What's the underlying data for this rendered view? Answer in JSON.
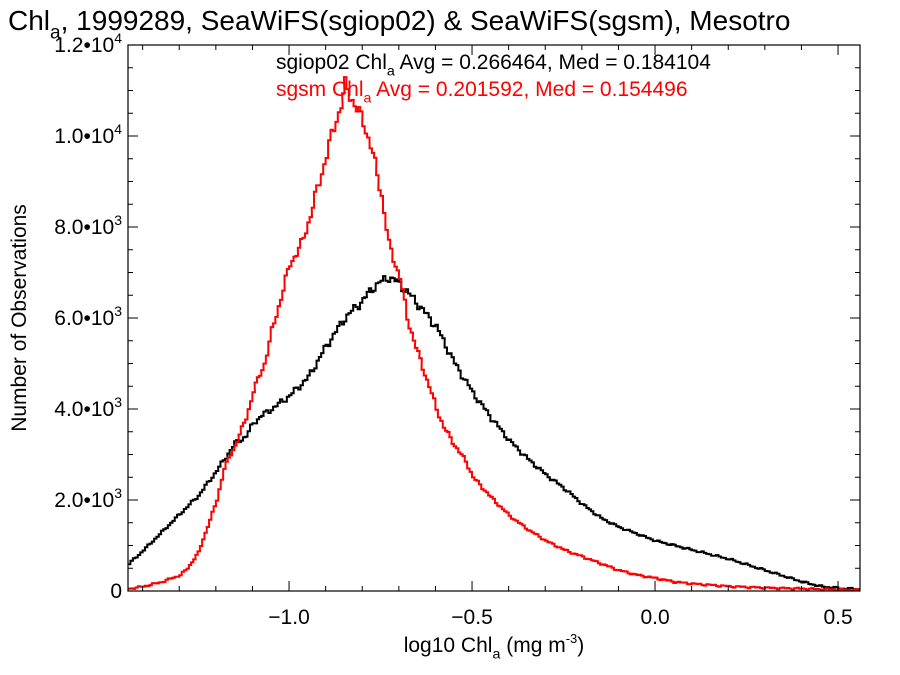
{
  "chart_data": {
    "type": "line",
    "style": "step histogram",
    "title": {
      "parts": [
        {
          "t": "Chl"
        },
        {
          "t": "a",
          "sub": true
        },
        {
          "t": ", 1999289, SeaWiFS(sgiop02) & SeaWiFS(sgsm), Mesotro"
        }
      ]
    },
    "xlabel": {
      "parts": [
        {
          "t": "log10 Chl"
        },
        {
          "t": "a",
          "sub": true
        },
        {
          "t": " (mg m"
        },
        {
          "t": "-3",
          "sup": true
        },
        {
          "t": ")"
        }
      ]
    },
    "ylabel": "Number of Observations",
    "xlim": [
      -1.44,
      0.56
    ],
    "ylim": [
      0,
      12000
    ],
    "x_ticks": [
      {
        "v": -1.0,
        "label": "−1.0"
      },
      {
        "v": -0.5,
        "label": "−0.5"
      },
      {
        "v": 0.0,
        "label": "0.0"
      },
      {
        "v": 0.5,
        "label": "0.5"
      }
    ],
    "y_ticks": [
      {
        "v": 0,
        "mant": "0"
      },
      {
        "v": 2000,
        "mant": "2.0•10",
        "exp": "3"
      },
      {
        "v": 4000,
        "mant": "4.0•10",
        "exp": "3"
      },
      {
        "v": 6000,
        "mant": "6.0•10",
        "exp": "3"
      },
      {
        "v": 8000,
        "mant": "8.0•10",
        "exp": "3"
      },
      {
        "v": 10000,
        "mant": "1.0•10",
        "exp": "4"
      },
      {
        "v": 12000,
        "mant": "1.2•10",
        "exp": "4"
      }
    ],
    "grid": false,
    "annotations": [
      {
        "color": "#000000",
        "parts": [
          {
            "t": "sgiop02 Chl"
          },
          {
            "t": "a",
            "sub": true
          },
          {
            "t": " Avg = 0.266464, Med = 0.184104"
          }
        ]
      },
      {
        "color": "#ff0000",
        "parts": [
          {
            "t": "sgsm Chl"
          },
          {
            "t": "a",
            "sub": true
          },
          {
            "t": " Avg = 0.201592, Med = 0.154496"
          }
        ]
      }
    ],
    "series": [
      {
        "color": "#000000",
        "x": [
          -1.44,
          -1.4,
          -1.35,
          -1.3,
          -1.25,
          -1.2,
          -1.15,
          -1.12,
          -1.1,
          -1.07,
          -1.05,
          -1.0,
          -0.95,
          -0.9,
          -0.85,
          -0.8,
          -0.77,
          -0.75,
          -0.73,
          -0.7,
          -0.65,
          -0.6,
          -0.55,
          -0.5,
          -0.45,
          -0.4,
          -0.35,
          -0.3,
          -0.25,
          -0.2,
          -0.15,
          -0.1,
          -0.05,
          0.0,
          0.05,
          0.1,
          0.2,
          0.3,
          0.4,
          0.45,
          0.5,
          0.56
        ],
        "y": [
          600,
          900,
          1300,
          1700,
          2100,
          2650,
          3250,
          3400,
          3700,
          3900,
          4000,
          4300,
          4700,
          5400,
          6000,
          6400,
          6700,
          6800,
          6900,
          6750,
          6300,
          5800,
          5000,
          4350,
          3800,
          3300,
          2900,
          2550,
          2250,
          1900,
          1600,
          1400,
          1250,
          1100,
          1000,
          900,
          700,
          450,
          200,
          100,
          60,
          40
        ]
      },
      {
        "color": "#ff0000",
        "x": [
          -1.44,
          -1.4,
          -1.35,
          -1.3,
          -1.28,
          -1.25,
          -1.2,
          -1.18,
          -1.15,
          -1.12,
          -1.1,
          -1.07,
          -1.05,
          -1.0,
          -0.97,
          -0.95,
          -0.92,
          -0.9,
          -0.88,
          -0.86,
          -0.85,
          -0.83,
          -0.8,
          -0.78,
          -0.75,
          -0.73,
          -0.7,
          -0.68,
          -0.65,
          -0.62,
          -0.6,
          -0.58,
          -0.55,
          -0.52,
          -0.5,
          -0.45,
          -0.4,
          -0.35,
          -0.3,
          -0.25,
          -0.2,
          -0.15,
          -0.1,
          -0.05,
          0.0,
          0.05,
          0.1,
          0.2,
          0.3,
          0.4,
          0.5,
          0.56
        ],
        "y": [
          50,
          100,
          200,
          350,
          500,
          850,
          2000,
          2700,
          3200,
          3800,
          4400,
          5000,
          5700,
          7200,
          7600,
          8100,
          9000,
          9600,
          10200,
          10700,
          11100,
          10800,
          10300,
          9800,
          8700,
          7600,
          6900,
          6000,
          5200,
          4500,
          4000,
          3600,
          3200,
          2850,
          2500,
          2050,
          1650,
          1350,
          1100,
          900,
          750,
          600,
          450,
          350,
          280,
          200,
          160,
          100,
          70,
          50,
          30,
          20
        ]
      }
    ]
  }
}
